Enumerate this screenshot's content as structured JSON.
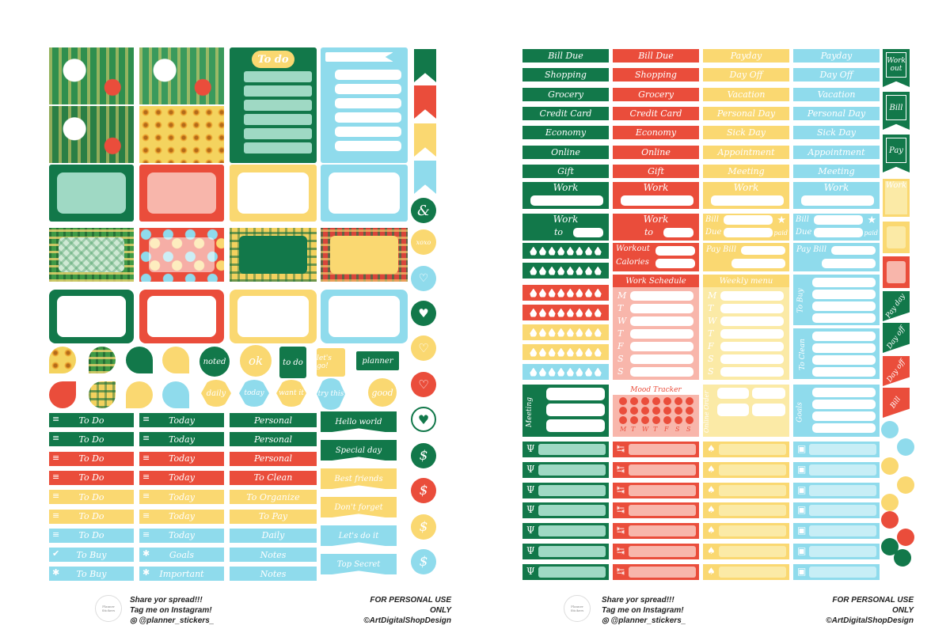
{
  "left_sheet": {
    "todo_title": "To do",
    "small_labels": [
      "noted",
      "ok",
      "to do",
      "let's go!",
      "planner"
    ],
    "hexes": [
      "daily",
      "today",
      "want it",
      "try this",
      "good"
    ],
    "xoxo": "xoxo",
    "amp": "&",
    "bars_col1": [
      "To Do",
      "To Do",
      "To Do",
      "To Do",
      "To Do",
      "To Do",
      "To Do",
      "To Buy",
      "To Buy"
    ],
    "bars_col2": [
      "Today",
      "Today",
      "Today",
      "Today",
      "Today",
      "Today",
      "Today",
      "Goals",
      "Important"
    ],
    "bars_col3": [
      "Personal",
      "Personal",
      "Personal",
      "To Clean",
      "To Organize",
      "To Pay",
      "Daily",
      "Notes",
      "Notes"
    ],
    "banners": [
      "Hello world",
      "Special day",
      "Best friends",
      "Don't forget",
      "Let's do it",
      "Top Secret"
    ],
    "dollar": "$"
  },
  "right_sheet": {
    "col1": [
      "Bill Due",
      "Shopping",
      "Grocery",
      "Credit Card",
      "Economy",
      "Online",
      "Gift"
    ],
    "col2": [
      "Bill Due",
      "Shopping",
      "Grocery",
      "Credit Card",
      "Economy",
      "Online",
      "Gift"
    ],
    "col3": [
      "Payday",
      "Day Off",
      "Vacation",
      "Personal Day",
      "Sick Day",
      "Appointment",
      "Meeting"
    ],
    "col4": [
      "Payday",
      "Day Off",
      "Vacation",
      "Personal Day",
      "Sick Day",
      "Appointment",
      "Meeting"
    ],
    "work": "Work",
    "to": "to",
    "bill": "Bill",
    "due": "Due",
    "paid": "paid",
    "pay_bill": "Pay Bill",
    "workout": "Workout",
    "calories": "Calories",
    "work_schedule": "Work Schedule",
    "weekly_menu": "Weekly menu",
    "mood_tracker": "Mood Tracker",
    "days": [
      "M",
      "T",
      "W",
      "T",
      "F",
      "S",
      "S"
    ],
    "to_buy": "To Buy",
    "to_clean": "To Clean",
    "goals": "Goals",
    "meeting": "Meeting",
    "online_order": "Online Order",
    "side_flags": [
      "Work out",
      "Bill",
      "Pay"
    ],
    "side_work": "Work",
    "side_ribbons": [
      "Pay day",
      "Day off",
      "Day off",
      "Bill"
    ],
    "currency": "$"
  },
  "footer": {
    "logo_text": "Planner Stickers",
    "share_line1": "Share yor spread!!!",
    "share_line2": "Tag me on Instagram!",
    "handle": "@planner_stickers_",
    "personal_use": "FOR PERSONAL USE ONLY",
    "copyright": "©ArtDigitalShopDesign"
  },
  "colors": {
    "green": "#12784a",
    "red": "#ea4d3b",
    "yellow": "#fad871",
    "blue": "#8fdbec"
  }
}
